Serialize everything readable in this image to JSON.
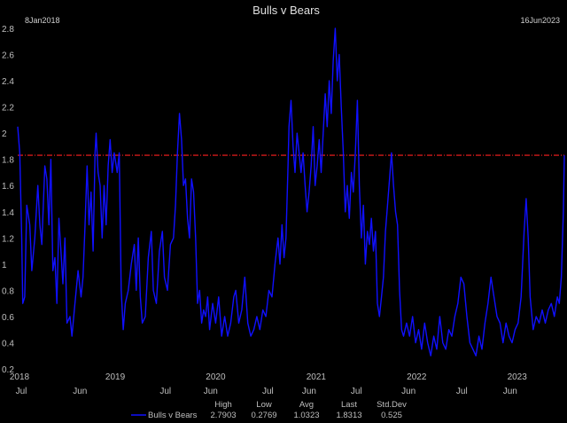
{
  "chart_data": {
    "type": "line",
    "title": "Bulls v Bears",
    "start_label": "8Jan2018",
    "end_label": "16Jun2023",
    "ylim": [
      0.2,
      2.8
    ],
    "y_ticks": [
      0.2,
      0.4,
      0.6,
      0.8,
      1,
      1.2,
      1.4,
      1.6,
      1.8,
      2,
      2.2,
      2.4,
      2.6,
      2.8
    ],
    "x_range": [
      2018.03,
      2023.47
    ],
    "year_ticks": [
      {
        "label": "2018",
        "x": 2018.03
      },
      {
        "label": "2019",
        "x": 2019.0
      },
      {
        "label": "2020",
        "x": 2020.0
      },
      {
        "label": "2021",
        "x": 2021.0
      },
      {
        "label": "2022",
        "x": 2022.0
      },
      {
        "label": "2023",
        "x": 2023.0
      }
    ],
    "month_ticks": [
      {
        "label": "Jul",
        "x": 2018.05
      },
      {
        "label": "Jun",
        "x": 2018.65
      },
      {
        "label": "Jul",
        "x": 2019.5
      },
      {
        "label": "Jun",
        "x": 2019.95
      },
      {
        "label": "Jul",
        "x": 2020.52
      },
      {
        "label": "Jun",
        "x": 2020.93
      },
      {
        "label": "Jul",
        "x": 2021.4
      },
      {
        "label": "Jun",
        "x": 2021.92
      },
      {
        "label": "Jul",
        "x": 2022.45
      },
      {
        "label": "Jun",
        "x": 2022.93
      }
    ],
    "reference_line": {
      "value": 1.8313,
      "color": "#ff2020"
    },
    "series": [
      {
        "name": "Bulls v Bears",
        "color": "#1010ff",
        "points": [
          [
            2018.03,
            2.05
          ],
          [
            2018.05,
            1.85
          ],
          [
            2018.07,
            1.2
          ],
          [
            2018.08,
            0.7
          ],
          [
            2018.1,
            0.75
          ],
          [
            2018.12,
            1.45
          ],
          [
            2018.15,
            1.3
          ],
          [
            2018.17,
            0.95
          ],
          [
            2018.2,
            1.2
          ],
          [
            2018.23,
            1.6
          ],
          [
            2018.25,
            1.3
          ],
          [
            2018.27,
            1.15
          ],
          [
            2018.3,
            1.75
          ],
          [
            2018.32,
            1.65
          ],
          [
            2018.34,
            1.3
          ],
          [
            2018.36,
            1.8
          ],
          [
            2018.38,
            0.95
          ],
          [
            2018.4,
            1.05
          ],
          [
            2018.42,
            0.7
          ],
          [
            2018.44,
            1.35
          ],
          [
            2018.46,
            1.1
          ],
          [
            2018.48,
            0.85
          ],
          [
            2018.5,
            1.2
          ],
          [
            2018.52,
            0.55
          ],
          [
            2018.55,
            0.6
          ],
          [
            2018.57,
            0.45
          ],
          [
            2018.6,
            0.7
          ],
          [
            2018.63,
            0.95
          ],
          [
            2018.66,
            0.75
          ],
          [
            2018.68,
            0.9
          ],
          [
            2018.7,
            1.3
          ],
          [
            2018.72,
            1.75
          ],
          [
            2018.74,
            1.3
          ],
          [
            2018.76,
            1.55
          ],
          [
            2018.78,
            1.1
          ],
          [
            2018.8,
            1.85
          ],
          [
            2018.81,
            2.0
          ],
          [
            2018.83,
            1.7
          ],
          [
            2018.85,
            1.6
          ],
          [
            2018.87,
            1.2
          ],
          [
            2018.89,
            1.6
          ],
          [
            2018.91,
            1.3
          ],
          [
            2018.93,
            1.75
          ],
          [
            2018.95,
            1.95
          ],
          [
            2018.97,
            1.7
          ],
          [
            2018.99,
            1.85
          ],
          [
            2019.02,
            1.7
          ],
          [
            2019.04,
            1.85
          ],
          [
            2019.06,
            0.8
          ],
          [
            2019.08,
            0.5
          ],
          [
            2019.1,
            0.7
          ],
          [
            2019.13,
            0.8
          ],
          [
            2019.16,
            1.0
          ],
          [
            2019.19,
            1.15
          ],
          [
            2019.21,
            0.8
          ],
          [
            2019.23,
            1.2
          ],
          [
            2019.25,
            0.75
          ],
          [
            2019.27,
            0.55
          ],
          [
            2019.3,
            0.6
          ],
          [
            2019.33,
            1.05
          ],
          [
            2019.36,
            1.25
          ],
          [
            2019.38,
            0.8
          ],
          [
            2019.41,
            0.7
          ],
          [
            2019.44,
            1.1
          ],
          [
            2019.47,
            1.25
          ],
          [
            2019.49,
            0.9
          ],
          [
            2019.52,
            0.8
          ],
          [
            2019.55,
            1.15
          ],
          [
            2019.58,
            1.2
          ],
          [
            2019.6,
            1.45
          ],
          [
            2019.62,
            1.85
          ],
          [
            2019.64,
            2.15
          ],
          [
            2019.66,
            1.95
          ],
          [
            2019.68,
            1.6
          ],
          [
            2019.7,
            1.65
          ],
          [
            2019.72,
            1.35
          ],
          [
            2019.74,
            1.2
          ],
          [
            2019.76,
            1.65
          ],
          [
            2019.78,
            1.55
          ],
          [
            2019.8,
            1.2
          ],
          [
            2019.82,
            0.7
          ],
          [
            2019.84,
            0.8
          ],
          [
            2019.86,
            0.55
          ],
          [
            2019.88,
            0.65
          ],
          [
            2019.9,
            0.6
          ],
          [
            2019.92,
            0.75
          ],
          [
            2019.94,
            0.5
          ],
          [
            2019.97,
            0.7
          ],
          [
            2020.0,
            0.55
          ],
          [
            2020.03,
            0.75
          ],
          [
            2020.06,
            0.45
          ],
          [
            2020.09,
            0.6
          ],
          [
            2020.12,
            0.45
          ],
          [
            2020.15,
            0.55
          ],
          [
            2020.18,
            0.75
          ],
          [
            2020.2,
            0.8
          ],
          [
            2020.23,
            0.55
          ],
          [
            2020.26,
            0.65
          ],
          [
            2020.29,
            0.9
          ],
          [
            2020.32,
            0.55
          ],
          [
            2020.35,
            0.45
          ],
          [
            2020.38,
            0.5
          ],
          [
            2020.41,
            0.6
          ],
          [
            2020.44,
            0.5
          ],
          [
            2020.47,
            0.65
          ],
          [
            2020.5,
            0.6
          ],
          [
            2020.53,
            0.8
          ],
          [
            2020.56,
            0.75
          ],
          [
            2020.59,
            1.0
          ],
          [
            2020.62,
            1.2
          ],
          [
            2020.64,
            1.0
          ],
          [
            2020.66,
            1.3
          ],
          [
            2020.68,
            1.05
          ],
          [
            2020.7,
            1.2
          ],
          [
            2020.72,
            1.75
          ],
          [
            2020.73,
            2.05
          ],
          [
            2020.75,
            2.25
          ],
          [
            2020.77,
            1.9
          ],
          [
            2020.79,
            1.7
          ],
          [
            2020.81,
            2.0
          ],
          [
            2020.83,
            1.85
          ],
          [
            2020.85,
            1.7
          ],
          [
            2020.87,
            1.85
          ],
          [
            2020.89,
            1.6
          ],
          [
            2020.91,
            1.4
          ],
          [
            2020.93,
            1.55
          ],
          [
            2020.95,
            1.75
          ],
          [
            2020.97,
            2.05
          ],
          [
            2020.99,
            1.6
          ],
          [
            2021.01,
            1.75
          ],
          [
            2021.03,
            1.95
          ],
          [
            2021.05,
            1.7
          ],
          [
            2021.07,
            2.0
          ],
          [
            2021.09,
            2.3
          ],
          [
            2021.11,
            2.05
          ],
          [
            2021.13,
            2.4
          ],
          [
            2021.15,
            2.15
          ],
          [
            2021.17,
            2.55
          ],
          [
            2021.19,
            2.8
          ],
          [
            2021.21,
            2.4
          ],
          [
            2021.23,
            2.6
          ],
          [
            2021.25,
            2.2
          ],
          [
            2021.27,
            1.85
          ],
          [
            2021.29,
            1.4
          ],
          [
            2021.31,
            1.6
          ],
          [
            2021.33,
            1.35
          ],
          [
            2021.35,
            1.7
          ],
          [
            2021.37,
            1.55
          ],
          [
            2021.39,
            1.85
          ],
          [
            2021.41,
            2.25
          ],
          [
            2021.43,
            1.6
          ],
          [
            2021.45,
            1.2
          ],
          [
            2021.47,
            1.45
          ],
          [
            2021.49,
            1.0
          ],
          [
            2021.51,
            1.25
          ],
          [
            2021.53,
            1.15
          ],
          [
            2021.55,
            1.35
          ],
          [
            2021.57,
            1.1
          ],
          [
            2021.59,
            1.25
          ],
          [
            2021.61,
            0.7
          ],
          [
            2021.63,
            0.6
          ],
          [
            2021.65,
            0.75
          ],
          [
            2021.67,
            0.9
          ],
          [
            2021.69,
            1.25
          ],
          [
            2021.71,
            1.45
          ],
          [
            2021.73,
            1.65
          ],
          [
            2021.75,
            1.85
          ],
          [
            2021.77,
            1.6
          ],
          [
            2021.79,
            1.4
          ],
          [
            2021.81,
            1.3
          ],
          [
            2021.83,
            0.8
          ],
          [
            2021.85,
            0.5
          ],
          [
            2021.87,
            0.45
          ],
          [
            2021.9,
            0.55
          ],
          [
            2021.93,
            0.45
          ],
          [
            2021.96,
            0.6
          ],
          [
            2021.99,
            0.4
          ],
          [
            2022.02,
            0.5
          ],
          [
            2022.05,
            0.35
          ],
          [
            2022.08,
            0.55
          ],
          [
            2022.11,
            0.4
          ],
          [
            2022.14,
            0.3
          ],
          [
            2022.17,
            0.45
          ],
          [
            2022.2,
            0.35
          ],
          [
            2022.23,
            0.6
          ],
          [
            2022.26,
            0.4
          ],
          [
            2022.29,
            0.35
          ],
          [
            2022.32,
            0.5
          ],
          [
            2022.35,
            0.45
          ],
          [
            2022.38,
            0.6
          ],
          [
            2022.41,
            0.7
          ],
          [
            2022.44,
            0.9
          ],
          [
            2022.47,
            0.85
          ],
          [
            2022.5,
            0.6
          ],
          [
            2022.53,
            0.4
          ],
          [
            2022.56,
            0.35
          ],
          [
            2022.59,
            0.3
          ],
          [
            2022.62,
            0.45
          ],
          [
            2022.65,
            0.35
          ],
          [
            2022.68,
            0.55
          ],
          [
            2022.71,
            0.7
          ],
          [
            2022.74,
            0.9
          ],
          [
            2022.77,
            0.75
          ],
          [
            2022.8,
            0.6
          ],
          [
            2022.83,
            0.55
          ],
          [
            2022.86,
            0.4
          ],
          [
            2022.89,
            0.55
          ],
          [
            2022.92,
            0.45
          ],
          [
            2022.95,
            0.4
          ],
          [
            2022.98,
            0.5
          ],
          [
            2023.01,
            0.55
          ],
          [
            2023.04,
            0.75
          ],
          [
            2023.07,
            1.25
          ],
          [
            2023.09,
            1.5
          ],
          [
            2023.11,
            1.2
          ],
          [
            2023.13,
            0.75
          ],
          [
            2023.16,
            0.5
          ],
          [
            2023.19,
            0.6
          ],
          [
            2023.22,
            0.55
          ],
          [
            2023.25,
            0.65
          ],
          [
            2023.28,
            0.55
          ],
          [
            2023.31,
            0.65
          ],
          [
            2023.34,
            0.7
          ],
          [
            2023.37,
            0.6
          ],
          [
            2023.4,
            0.75
          ],
          [
            2023.42,
            0.7
          ],
          [
            2023.44,
            0.9
          ],
          [
            2023.46,
            1.4
          ],
          [
            2023.47,
            1.83
          ]
        ]
      }
    ],
    "stats": {
      "headers": [
        "High",
        "Low",
        "Avg",
        "Last",
        "Std.Dev"
      ],
      "values": [
        "2.7903",
        "0.2769",
        "1.0323",
        "1.8313",
        "0.525"
      ]
    }
  }
}
